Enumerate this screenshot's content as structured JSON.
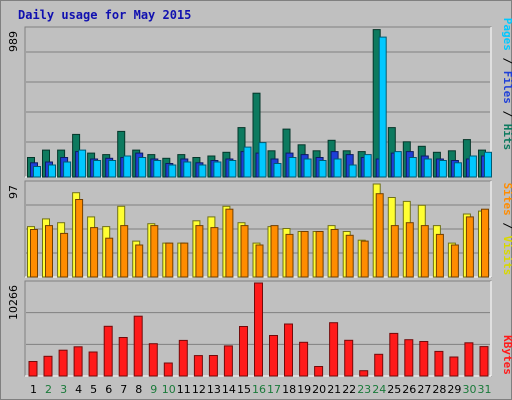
{
  "title": "Daily usage for May 2015",
  "colors": {
    "hits": "#0d7a5f",
    "files": "#1e3fd8",
    "pages": "#00c8ff",
    "visits": "#ffff33",
    "sites": "#ff8c00",
    "kbytes": "#ff1a1a",
    "weekday_label": "#000000",
    "weekend_label": "#1a7a3a",
    "hits_label": "#0d7a5f",
    "files_label": "#1e3fd8",
    "pages_label": "#00c8ff",
    "visits_label": "#d8d800",
    "sites_label": "#ff8c00",
    "kbytes_label": "#ff1a1a"
  },
  "right_labels": {
    "top": [
      "Pages",
      " / ",
      "Files",
      " / ",
      "Hits"
    ],
    "middle": [
      "Sites",
      " / ",
      "Visits"
    ],
    "bottom": [
      "KBytes"
    ]
  },
  "chart_data": [
    {
      "type": "bar",
      "panel": "hits-files-pages",
      "title": "Daily usage for May 2015",
      "ylabel": "989",
      "ylim": [
        0,
        989
      ],
      "categories": [
        "1",
        "2",
        "3",
        "4",
        "5",
        "6",
        "7",
        "8",
        "9",
        "10",
        "11",
        "12",
        "13",
        "14",
        "15",
        "16",
        "17",
        "18",
        "19",
        "20",
        "21",
        "22",
        "23",
        "24",
        "25",
        "26",
        "27",
        "28",
        "29",
        "30",
        "31"
      ],
      "weekend_days": [
        "2",
        "3",
        "9",
        "10",
        "16",
        "17",
        "23",
        "24",
        "30",
        "31"
      ],
      "series": [
        {
          "name": "Hits",
          "values": [
            130,
            180,
            180,
            285,
            160,
            150,
            305,
            180,
            150,
            125,
            150,
            130,
            140,
            165,
            330,
            560,
            175,
            320,
            215,
            175,
            245,
            175,
            170,
            985,
            330,
            235,
            205,
            165,
            175,
            250,
            180
          ]
        },
        {
          "name": "Files",
          "values": [
            95,
            100,
            130,
            170,
            120,
            125,
            130,
            160,
            120,
            90,
            120,
            95,
            110,
            120,
            170,
            160,
            120,
            160,
            150,
            130,
            170,
            150,
            130,
            120,
            160,
            170,
            140,
            120,
            110,
            120,
            140
          ]
        },
        {
          "name": "Pages",
          "values": [
            70,
            80,
            100,
            180,
            110,
            110,
            140,
            130,
            110,
            80,
            100,
            80,
            100,
            110,
            200,
            230,
            90,
            130,
            120,
            110,
            120,
            80,
            150,
            935,
            170,
            130,
            120,
            110,
            95,
            140,
            165
          ]
        }
      ]
    },
    {
      "type": "bar",
      "panel": "sites-visits",
      "ylabel": "97",
      "ylim": [
        0,
        97
      ],
      "categories": [
        "1",
        "2",
        "3",
        "4",
        "5",
        "6",
        "7",
        "8",
        "9",
        "10",
        "11",
        "12",
        "13",
        "14",
        "15",
        "16",
        "17",
        "18",
        "19",
        "20",
        "21",
        "22",
        "23",
        "24",
        "25",
        "26",
        "27",
        "28",
        "29",
        "30",
        "31"
      ],
      "series": [
        {
          "name": "Visits",
          "values": [
            52,
            60,
            56,
            87,
            62,
            52,
            73,
            37,
            55,
            35,
            35,
            58,
            62,
            73,
            56,
            35,
            52,
            50,
            47,
            47,
            53,
            47,
            38,
            96,
            82,
            78,
            74,
            53,
            35,
            65,
            68
          ]
        },
        {
          "name": "Sites",
          "values": [
            49,
            53,
            45,
            80,
            51,
            40,
            53,
            33,
            53,
            35,
            35,
            53,
            51,
            70,
            53,
            33,
            53,
            44,
            47,
            47,
            49,
            43,
            37,
            86,
            53,
            56,
            53,
            44,
            33,
            62,
            70
          ]
        }
      ]
    },
    {
      "type": "bar",
      "panel": "kbytes",
      "ylabel": "10266",
      "ylim": [
        0,
        10266
      ],
      "categories": [
        "1",
        "2",
        "3",
        "4",
        "5",
        "6",
        "7",
        "8",
        "9",
        "10",
        "11",
        "12",
        "13",
        "14",
        "15",
        "16",
        "17",
        "18",
        "19",
        "20",
        "21",
        "22",
        "23",
        "24",
        "25",
        "26",
        "27",
        "28",
        "29",
        "30",
        "31"
      ],
      "series": [
        {
          "name": "KBytes",
          "values": [
            1600,
            2180,
            2850,
            3220,
            2650,
            5490,
            4250,
            6600,
            3560,
            1440,
            3930,
            2250,
            2260,
            3320,
            5460,
            10266,
            4470,
            5740,
            3720,
            1050,
            5880,
            3940,
            580,
            2400,
            4700,
            4010,
            3810,
            2720,
            2100,
            3670,
            3240
          ]
        }
      ]
    }
  ]
}
